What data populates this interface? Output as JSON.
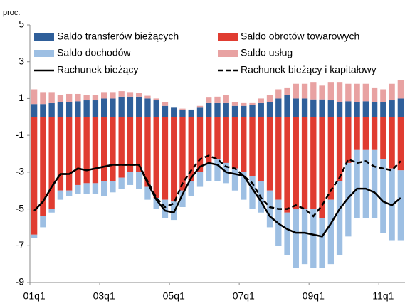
{
  "chart_data": {
    "type": "bar",
    "stacked": true,
    "y_label": "proc.",
    "categories": [
      "01q1",
      null,
      null,
      null,
      null,
      null,
      null,
      null,
      "03q1",
      null,
      null,
      null,
      null,
      null,
      null,
      null,
      "05q1",
      null,
      null,
      null,
      null,
      null,
      null,
      null,
      "07q1",
      null,
      null,
      null,
      null,
      null,
      null,
      null,
      "09q1",
      null,
      null,
      null,
      null,
      null,
      null,
      null,
      "11q1",
      null,
      null
    ],
    "ylim": [
      -9,
      5
    ],
    "yticks": [
      -9,
      -7,
      -5,
      -3,
      -1,
      1,
      3,
      5
    ],
    "series": [
      {
        "name": "Saldo transferów bieżących",
        "kind": "bar",
        "color": "#2f5f9a",
        "values": [
          0.7,
          0.7,
          0.75,
          0.8,
          0.8,
          0.85,
          0.9,
          0.9,
          1.0,
          1.0,
          1.1,
          1.1,
          1.1,
          1.0,
          0.9,
          0.6,
          0.5,
          0.4,
          0.4,
          0.5,
          0.75,
          0.75,
          0.75,
          0.6,
          0.6,
          0.65,
          0.75,
          0.8,
          1.0,
          1.2,
          1.0,
          1.0,
          0.95,
          0.95,
          0.9,
          0.8,
          0.85,
          0.8,
          0.85,
          0.8,
          0.8,
          0.9,
          1.0
        ]
      },
      {
        "name": "Saldo obrotów towarowych",
        "kind": "bar",
        "color": "#e03c31",
        "values": [
          -6.4,
          -5.4,
          -5.0,
          -4.0,
          -4.0,
          -3.7,
          -3.6,
          -3.6,
          -3.5,
          -3.5,
          -3.3,
          -3.0,
          -3.0,
          -3.8,
          -4.4,
          -4.5,
          -4.6,
          -4.0,
          -3.5,
          -3.0,
          -2.5,
          -2.3,
          -2.5,
          -2.8,
          -3.0,
          -3.2,
          -3.5,
          -4.0,
          -4.5,
          -5.2,
          -5.0,
          -5.0,
          -5.0,
          -5.5,
          -4.5,
          -3.5,
          -2.5,
          -1.8,
          -1.8,
          -1.8,
          -2.3,
          -2.8,
          -2.9
        ]
      },
      {
        "name": "Saldo dochodów",
        "kind": "bar",
        "color": "#9dbfe3",
        "values": [
          -0.2,
          -0.6,
          -0.2,
          -0.5,
          -0.3,
          -0.5,
          -0.6,
          -0.6,
          -0.8,
          -0.6,
          -0.6,
          -0.7,
          -0.9,
          -0.7,
          -0.6,
          -1.0,
          -1.0,
          -0.9,
          -0.8,
          -0.8,
          -1.0,
          -1.2,
          -1.1,
          -1.2,
          -1.5,
          -1.8,
          -1.7,
          -2.0,
          -2.5,
          -2.3,
          -3.2,
          -3.0,
          -3.2,
          -2.7,
          -3.5,
          -4.0,
          -4.0,
          -3.7,
          -3.7,
          -3.7,
          -4.0,
          -3.9,
          -3.8
        ]
      },
      {
        "name": "Saldo usług",
        "kind": "bar",
        "color": "#e8a2a2",
        "values": [
          0.8,
          0.65,
          0.6,
          0.4,
          0.45,
          0.4,
          0.3,
          0.3,
          0.35,
          0.35,
          0.3,
          0.25,
          0.2,
          0.15,
          0.1,
          0.2,
          0.0,
          0.05,
          0.0,
          0.1,
          0.3,
          0.35,
          0.45,
          0.2,
          0.15,
          0.1,
          0.25,
          0.4,
          0.5,
          0.4,
          0.8,
          0.8,
          0.95,
          0.75,
          1.0,
          1.1,
          0.95,
          1.0,
          0.95,
          0.8,
          0.7,
          0.9,
          1.0
        ]
      },
      {
        "name": "Rachunek bieżący",
        "kind": "line",
        "color": "#000000",
        "dashed": false,
        "values": [
          -5.1,
          -4.6,
          -3.8,
          -3.1,
          -3.1,
          -2.8,
          -2.9,
          -2.8,
          -2.7,
          -2.6,
          -2.6,
          -2.6,
          -2.6,
          -3.6,
          -4.5,
          -5.1,
          -5.2,
          -4.2,
          -3.3,
          -2.7,
          -2.5,
          -2.6,
          -3.0,
          -3.1,
          -3.2,
          -3.9,
          -4.6,
          -5.4,
          -5.8,
          -6.1,
          -6.3,
          -6.3,
          -6.4,
          -6.5,
          -5.8,
          -5.0,
          -4.4,
          -3.9,
          -3.9,
          -4.1,
          -4.6,
          -4.8,
          -4.4
        ]
      },
      {
        "name": "Rachunek bieżący i kapitałowy",
        "kind": "line",
        "color": "#000000",
        "dashed": true,
        "values": [
          -5.1,
          -4.6,
          -3.8,
          -3.1,
          -3.1,
          -2.8,
          -2.9,
          -2.8,
          -2.7,
          -2.6,
          -2.6,
          -2.6,
          -2.6,
          -3.5,
          -4.4,
          -4.9,
          -4.7,
          -3.6,
          -2.9,
          -2.3,
          -2.1,
          -2.3,
          -2.7,
          -2.8,
          -3.2,
          -3.6,
          -4.4,
          -4.9,
          -5.0,
          -5.0,
          -4.8,
          -5.0,
          -5.4,
          -4.8,
          -4.0,
          -3.3,
          -2.3,
          -2.5,
          -2.4,
          -2.7,
          -2.8,
          -2.9,
          -2.4
        ]
      }
    ]
  }
}
